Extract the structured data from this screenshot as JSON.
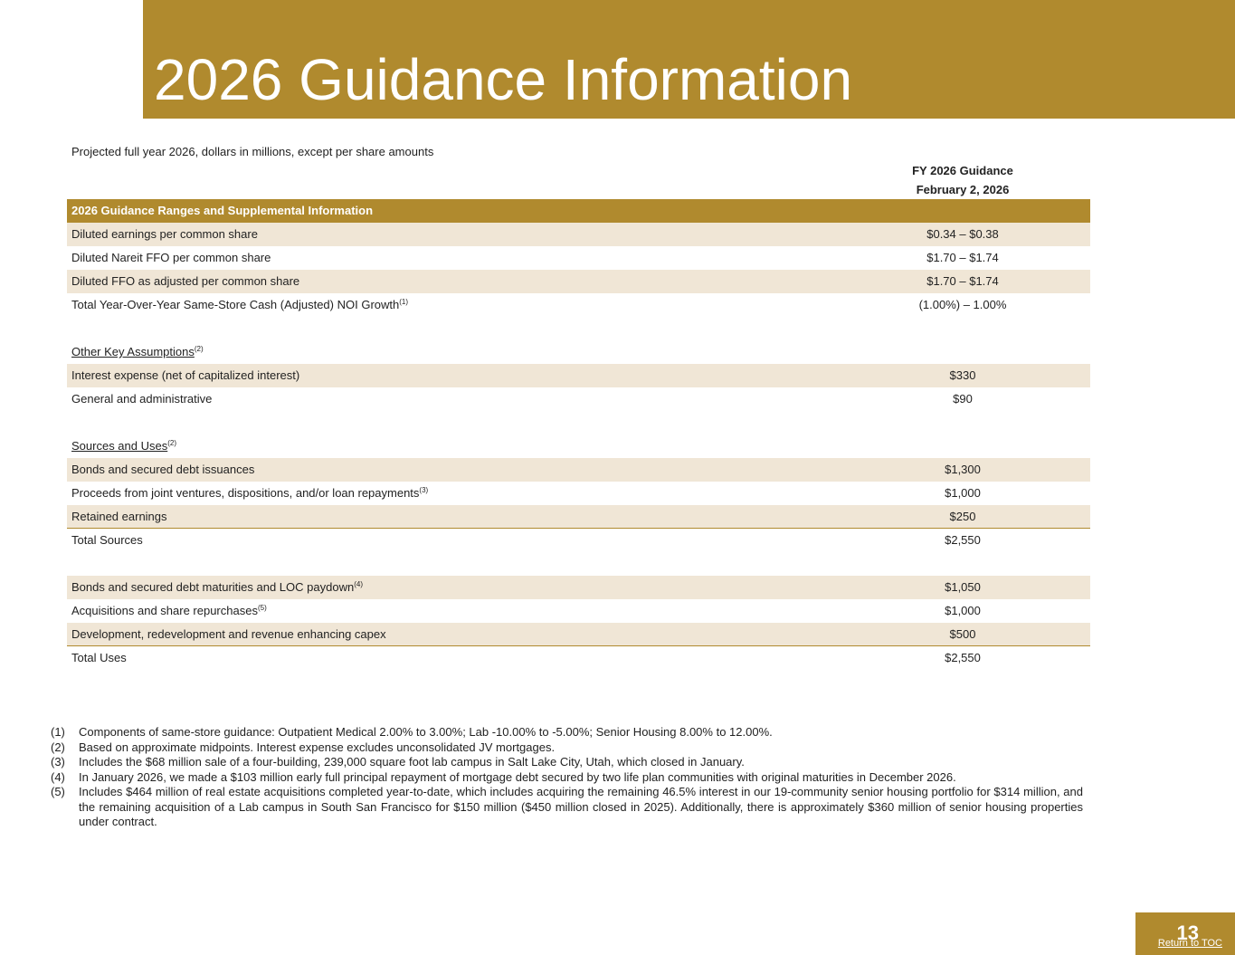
{
  "header": {
    "title": "2026 Guidance Information",
    "subtitle": "Projected full year 2026, dollars in millions, except per share amounts"
  },
  "table": {
    "column_header": [
      "FY 2026 Guidance",
      "February 2, 2026"
    ],
    "section_header": "2026 Guidance Ranges and Supplemental Information",
    "rows": [
      {
        "label": "Diluted earnings per common share",
        "value": "$0.34 – $0.38"
      },
      {
        "label": "Diluted Nareit FFO per common share",
        "value": "$1.70 – $1.74"
      },
      {
        "label": "Diluted FFO as adjusted per common share",
        "value": "$1.70 – $1.74"
      },
      {
        "label": "Total Year-Over-Year Same-Store Cash (Adjusted) NOI Growth",
        "note": "(1)",
        "value": "(1.00%) – 1.00%"
      },
      {
        "label": "Other Key Assumptions",
        "note": "(2)"
      },
      {
        "label": "Interest expense (net of capitalized interest)",
        "value": "$330"
      },
      {
        "label": "General and administrative",
        "value": "$90"
      },
      {
        "label": "Sources and Uses",
        "note": "(2)"
      },
      {
        "label": "Bonds and secured debt issuances",
        "value": "$1,300"
      },
      {
        "label": "Proceeds from joint ventures, dispositions, and/or loan repayments",
        "note": "(3)",
        "value": "$1,000"
      },
      {
        "label": "Retained earnings",
        "value": "$250"
      },
      {
        "label": "Total Sources",
        "value": "$2,550"
      },
      {
        "label": "Bonds and secured debt maturities and LOC paydown",
        "note": "(4)",
        "value": "$1,050"
      },
      {
        "label": "Acquisitions and share repurchases",
        "note": "(5)",
        "value": "$1,000"
      },
      {
        "label": "Development, redevelopment and revenue enhancing capex",
        "value": "$500"
      },
      {
        "label": "Total Uses",
        "value": "$2,550"
      }
    ]
  },
  "footnotes": [
    {
      "number": "(1)",
      "text": "Components of same-store guidance: Outpatient Medical 2.00% to 3.00%; Lab -10.00% to -5.00%; Senior Housing 8.00% to 12.00%."
    },
    {
      "number": "(2)",
      "text": "Based on approximate midpoints. Interest expense excludes unconsolidated JV mortgages."
    },
    {
      "number": "(3)",
      "text": "Includes the $68 million sale of a four-building, 239,000 square foot lab campus in Salt Lake City, Utah, which closed in January."
    },
    {
      "number": "(4)",
      "text": "In January 2026, we made a $103 million early full principal repayment of mortgage debt secured by two life plan communities with original maturities in December 2026."
    },
    {
      "number": "(5)",
      "text": "Includes $464 million of real estate acquisitions completed year-to-date, which includes acquiring the remaining 46.5% interest in our 19-community senior housing portfolio for $314 million, and the remaining acquisition of a Lab campus in South San Francisco for $150 million ($450 million closed in 2025). Additionally, there is approximately $360 million of senior housing properties under contract."
    }
  ],
  "footer": {
    "page_number": "13",
    "link": "Return to TOC"
  }
}
